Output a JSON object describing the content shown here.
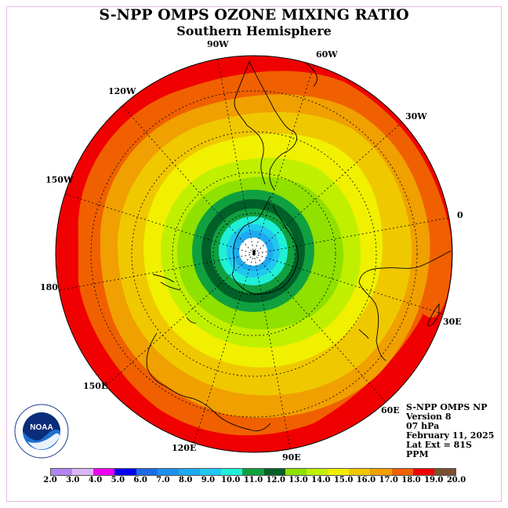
{
  "title": "S-NPP OMPS OZONE MIXING RATIO",
  "subtitle": "Southern Hemisphere",
  "longitude_labels": {
    "lon_90w": "90W",
    "lon_60w": "60W",
    "lon_30w": "30W",
    "lon_0": "0",
    "lon_30e": "30E",
    "lon_60e": "60E",
    "lon_90e": "90E",
    "lon_120e": "120E",
    "lon_150e": "150E",
    "lon_180": "180",
    "lon_150w": "150W",
    "lon_120w": "120W"
  },
  "info": {
    "product": "S-NPP OMPS NP",
    "version": "Version 8",
    "level": "07 hPa",
    "date": "February 11, 2025",
    "lat_ext": "Lat Ext = 81S",
    "units": "PPM"
  },
  "logo_text": "NOAA",
  "colorbar": {
    "ticks": [
      "2.0",
      "3.0",
      "4.0",
      "5.0",
      "6.0",
      "7.0",
      "8.0",
      "9.0",
      "10.0",
      "11.0",
      "12.0",
      "13.0",
      "14.0",
      "15.0",
      "16.0",
      "17.0",
      "18.0",
      "19.0",
      "20.0"
    ],
    "colors": [
      "#b284ef",
      "#dbb7f5",
      "#ef00ef",
      "#0000ee",
      "#1e6be8",
      "#1e90f0",
      "#1eaaf0",
      "#20c8f0",
      "#20f0d8",
      "#10a040",
      "#006028",
      "#90e000",
      "#c0f000",
      "#f0f000",
      "#f0c800",
      "#f0a000",
      "#f06000",
      "#f00000",
      "#7a5030"
    ]
  },
  "contour_colors": {
    "red": "#f00000",
    "orange_red": "#f06000",
    "orange": "#f0a000",
    "gold": "#f0c800",
    "yellow": "#f0f000",
    "yellow_green": "#c0f000",
    "green": "#90e000",
    "dark_green": "#006028",
    "mid_green": "#10a040",
    "cyan": "#20f0d8",
    "light_blue": "#20c8f0",
    "blue": "#1eaaf0",
    "center": "#ffffff"
  }
}
